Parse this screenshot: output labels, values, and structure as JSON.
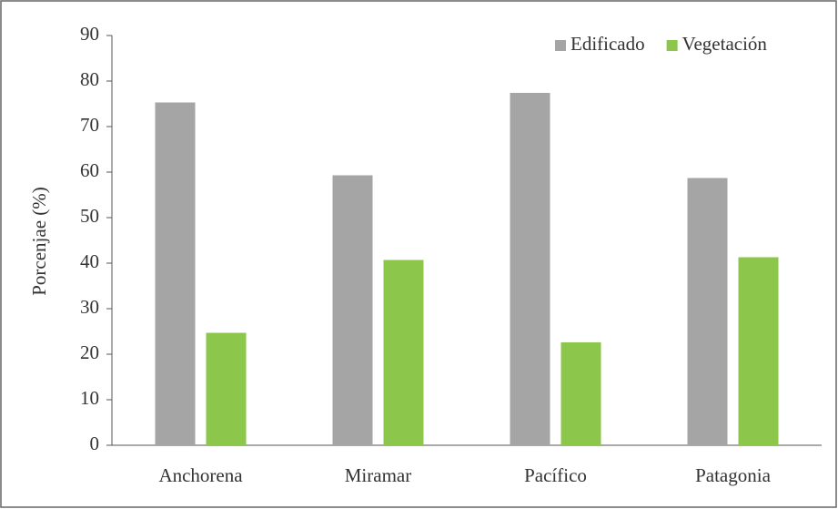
{
  "chart_data": {
    "type": "bar",
    "y_label": "Porcenjae (%)",
    "categories": [
      "Anchorena",
      "Miramar",
      "Pacífico",
      "Patagonia"
    ],
    "series": [
      {
        "name": "Edificado",
        "color": "#a6a5a5",
        "values": [
          75.3,
          59.3,
          77.4,
          58.7
        ]
      },
      {
        "name": "Vegetación",
        "color": "#8cc64a",
        "values": [
          24.7,
          40.7,
          22.6,
          41.3
        ]
      }
    ],
    "ylim": [
      0,
      90
    ],
    "yticks": [
      0,
      10,
      20,
      30,
      40,
      50,
      60,
      70,
      80,
      90
    ],
    "grid": false,
    "legend": "upper right"
  }
}
